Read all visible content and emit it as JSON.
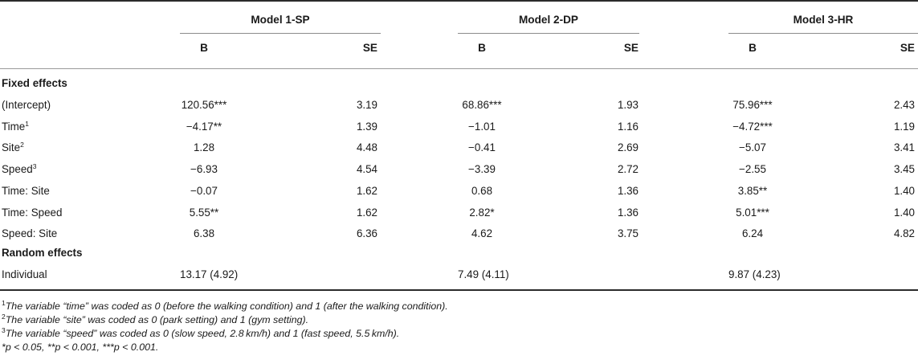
{
  "models": [
    {
      "name": "Model 1-SP"
    },
    {
      "name": "Model 2-DP"
    },
    {
      "name": "Model 3-HR"
    }
  ],
  "subheaders": {
    "b": "B",
    "se": "SE"
  },
  "sections": {
    "fixed": "Fixed effects",
    "random": "Random effects"
  },
  "fixed_rows": [
    {
      "label": "(Intercept)",
      "sup": "",
      "vals": [
        "120.56***",
        "3.19",
        "68.86***",
        "1.93",
        "75.96***",
        "2.43"
      ]
    },
    {
      "label": "Time",
      "sup": "1",
      "vals": [
        "−4.17**",
        "1.39",
        "−1.01",
        "1.16",
        "−4.72***",
        "1.19"
      ]
    },
    {
      "label": "Site",
      "sup": "2",
      "vals": [
        "1.28",
        "4.48",
        "−0.41",
        "2.69",
        "−5.07",
        "3.41"
      ]
    },
    {
      "label": "Speed",
      "sup": "3",
      "vals": [
        "−6.93",
        "4.54",
        "−3.39",
        "2.72",
        "−2.55",
        "3.45"
      ]
    },
    {
      "label": "Time: Site",
      "sup": "",
      "vals": [
        "−0.07",
        "1.62",
        "0.68",
        "1.36",
        "3.85**",
        "1.40"
      ]
    },
    {
      "label": "Time: Speed",
      "sup": "",
      "vals": [
        "5.55**",
        "1.62",
        "2.82*",
        "1.36",
        "5.01***",
        "1.40"
      ]
    },
    {
      "label": "Speed: Site",
      "sup": "",
      "vals": [
        "6.38",
        "6.36",
        "4.62",
        "3.75",
        "6.24",
        "4.82"
      ]
    }
  ],
  "random_rows": [
    {
      "label": "Individual",
      "vals": [
        "13.17 (4.92)",
        "7.49 (4.11)",
        "9.87 (4.23)"
      ]
    }
  ],
  "notes": [
    {
      "sup": "1",
      "text": "The variable “time” was coded as 0 (before the walking condition) and 1 (after the walking condition)."
    },
    {
      "sup": "2",
      "text": "The variable “site” was coded as 0 (park setting) and 1 (gym setting)."
    },
    {
      "sup": "3",
      "text": "The variable “speed” was coded as 0 (slow speed, 2.8 km/h) and 1 (fast speed, 5.5 km/h)."
    },
    {
      "sup": "",
      "text": "*p < 0.05, **p < 0.001, ***p < 0.001."
    }
  ]
}
